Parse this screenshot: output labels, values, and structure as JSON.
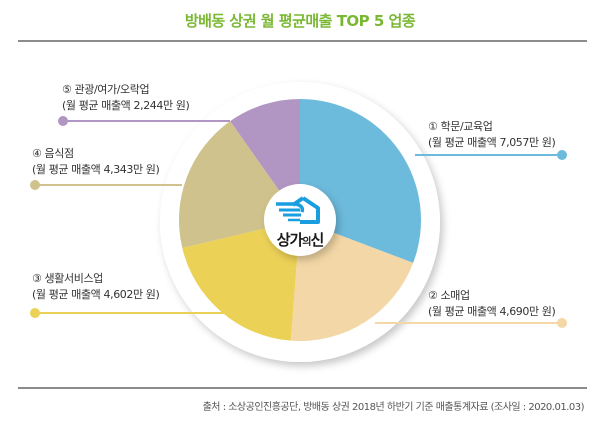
{
  "title": "방배동 상권 월 평균매출 TOP 5 업종",
  "logo": {
    "text_main": "상가",
    "text_small": "의",
    "text_end": "신",
    "icon": "house-hand-icon",
    "color": "#1a9ee0"
  },
  "labels": [
    {
      "line1": "① 학문/교육업",
      "line2": "(월 평균 매출액 7,057만 원)"
    },
    {
      "line1": "② 소매업",
      "line2": "(월 평균 매출액 4,690만 원)"
    },
    {
      "line1": "③ 생활서비스업",
      "line2": "(월 평균 매출액 4,602만 원)"
    },
    {
      "line1": "④ 음식점",
      "line2": "(월 평균 매출액 4,343만 원)"
    },
    {
      "line1": "⑤ 관광/여가/오락업",
      "line2": "(월 평균 매출액 2,244만 원)"
    }
  ],
  "source": "출처 : 소상공인진흥공단, 방배동 상권 2018년 하반기 기준 매출통계자료 (조사일 : 2020.01.03)",
  "colors": {
    "title": "#7ab834",
    "slices": [
      "#6cbadc",
      "#f3d7a6",
      "#ecd157",
      "#cfc28c",
      "#b195c2"
    ]
  },
  "chart_data": {
    "type": "pie",
    "title": "방배동 상권 월 평균매출 TOP 5 업종",
    "unit": "만 원",
    "categories": [
      "학문/교육업",
      "소매업",
      "생활서비스업",
      "음식점",
      "관광/여가/오락업"
    ],
    "values": [
      7057,
      4690,
      4602,
      4343,
      2244
    ],
    "start_angle": "12 o'clock, clockwise",
    "legend_position": "callout labels around pie",
    "center_logo": "상가의신"
  }
}
